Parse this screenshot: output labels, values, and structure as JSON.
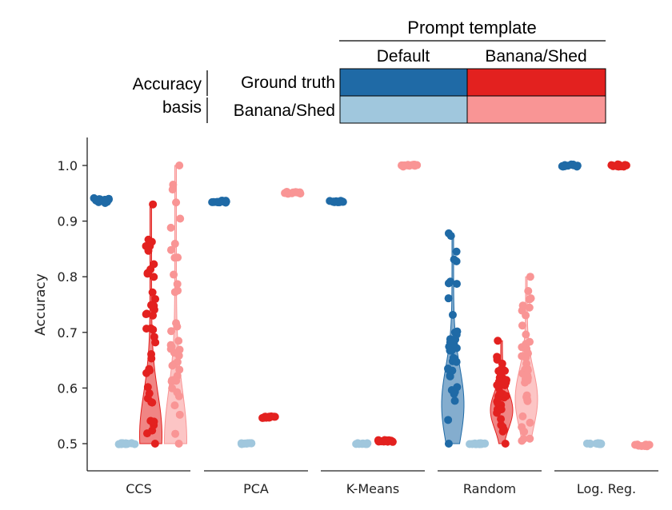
{
  "chart_data": {
    "type": "violin-strip",
    "ylabel": "Accuracy",
    "ylim": [
      0.47,
      1.05
    ],
    "yticks": [
      "0.5",
      "0.6",
      "0.7",
      "0.8",
      "0.9",
      "1.0"
    ],
    "grid": false,
    "legend": {
      "title": "Prompt template",
      "columns": [
        "Default",
        "Banana/Shed"
      ],
      "row_title_lines": [
        "Accuracy",
        "basis"
      ],
      "rows": [
        "Ground truth",
        "Banana/Shed"
      ],
      "colors": [
        [
          "#1f6aa6",
          "#e3211f"
        ],
        [
          "#a0c7dd",
          "#f99595"
        ]
      ]
    },
    "categories": [
      "CCS",
      "PCA",
      "K-Means",
      "Random",
      "Log. Reg."
    ],
    "series": [
      {
        "template": "Default",
        "basis": "Ground truth",
        "color": "#1f6aa6",
        "groups": [
          {
            "category": "CCS",
            "min": 0.932,
            "max": 0.942,
            "center": 0.937
          },
          {
            "category": "PCA",
            "min": 0.933,
            "max": 0.937,
            "center": 0.935
          },
          {
            "category": "K-Means",
            "min": 0.933,
            "max": 0.937,
            "center": 0.935
          },
          {
            "category": "Random",
            "min": 0.5,
            "max": 0.878,
            "center": 0.57
          },
          {
            "category": "Log. Reg.",
            "min": 0.998,
            "max": 1.002,
            "center": 1.0
          }
        ]
      },
      {
        "template": "Default",
        "basis": "Banana/Shed",
        "color": "#a0c7dd",
        "groups": [
          {
            "category": "CCS",
            "min": 0.499,
            "max": 0.501,
            "center": 0.5
          },
          {
            "category": "PCA",
            "min": 0.499,
            "max": 0.501,
            "center": 0.5
          },
          {
            "category": "K-Means",
            "min": 0.499,
            "max": 0.501,
            "center": 0.5
          },
          {
            "category": "Random",
            "min": 0.499,
            "max": 0.501,
            "center": 0.5
          },
          {
            "category": "Log. Reg.",
            "min": 0.499,
            "max": 0.501,
            "center": 0.5
          }
        ]
      },
      {
        "template": "Banana/Shed",
        "basis": "Ground truth",
        "color": "#e3211f",
        "groups": [
          {
            "category": "CCS",
            "min": 0.5,
            "max": 0.93,
            "center": 0.515
          },
          {
            "category": "PCA",
            "min": 0.546,
            "max": 0.55,
            "center": 0.548
          },
          {
            "category": "K-Means",
            "min": 0.503,
            "max": 0.507,
            "center": 0.505
          },
          {
            "category": "Random",
            "min": 0.5,
            "max": 0.685,
            "center": 0.56
          },
          {
            "category": "Log. Reg.",
            "min": 0.998,
            "max": 1.002,
            "center": 1.0
          }
        ]
      },
      {
        "template": "Banana/Shed",
        "basis": "Banana/Shed",
        "color": "#f99595",
        "groups": [
          {
            "category": "CCS",
            "min": 0.5,
            "max": 1.0,
            "center": 0.505
          },
          {
            "category": "PCA",
            "min": 0.949,
            "max": 0.953,
            "center": 0.951
          },
          {
            "category": "K-Means",
            "min": 0.998,
            "max": 1.002,
            "center": 1.0
          },
          {
            "category": "Random",
            "min": 0.505,
            "max": 0.8,
            "center": 0.58
          },
          {
            "category": "Log. Reg.",
            "min": 0.495,
            "max": 0.499,
            "center": 0.497
          }
        ]
      }
    ]
  }
}
